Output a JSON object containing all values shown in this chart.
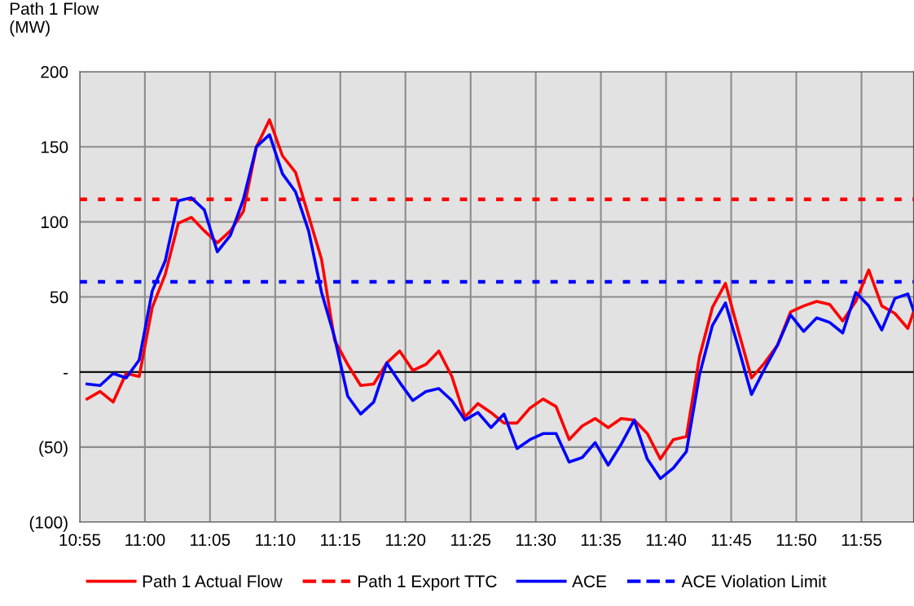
{
  "chart_data": {
    "type": "line",
    "ylabel": "Path 1 Flow\n(MW)",
    "x": [
      10.926,
      10.9427,
      10.9594,
      10.976,
      10.9927,
      11.0094,
      11.026,
      11.0427,
      11.0594,
      11.076,
      11.0927,
      11.1094,
      11.126,
      11.1427,
      11.1594,
      11.176,
      11.1927,
      11.2094,
      11.226,
      11.2427,
      11.2594,
      11.276,
      11.2927,
      11.3094,
      11.326,
      11.3427,
      11.3594,
      11.376,
      11.3927,
      11.4094,
      11.426,
      11.4427,
      11.4594,
      11.476,
      11.4927,
      11.5094,
      11.526,
      11.5427,
      11.5594,
      11.576,
      11.5927,
      11.6094,
      11.626,
      11.6427,
      11.6594,
      11.676,
      11.6927,
      11.7094,
      11.726,
      11.7427,
      11.7594,
      11.776,
      11.7927,
      11.8094,
      11.826,
      11.8427,
      11.8594,
      11.876,
      11.8927,
      11.9094,
      11.926,
      11.9427,
      11.9594,
      11.976,
      11.9833
    ],
    "series": [
      {
        "name": "Path 1 Actual Flow",
        "color": "#ff0000",
        "values": [
          -18,
          -13,
          -20,
          -1,
          -3,
          43,
          65,
          99,
          103,
          94,
          86,
          94,
          107,
          150,
          168,
          144,
          133,
          104,
          75,
          21,
          5,
          -9,
          -8,
          6,
          14,
          1,
          5,
          14,
          -3,
          -30,
          -21,
          -27,
          -34,
          -34,
          -24,
          -18,
          -23,
          -45,
          -36,
          -31,
          -37,
          -31,
          -32,
          -41,
          -58,
          -45,
          -43,
          10,
          43,
          59,
          27,
          -4,
          6,
          18,
          40,
          44,
          47,
          45,
          34,
          47,
          68,
          44,
          39,
          29,
          40
        ]
      },
      {
        "name": "ACE",
        "color": "#0000ff",
        "values": [
          -8,
          -9,
          -1,
          -4,
          8,
          54,
          74,
          114,
          116,
          108,
          80,
          91,
          115,
          150,
          158,
          132,
          120,
          94,
          53,
          23,
          -16,
          -28,
          -20,
          6,
          -7,
          -19,
          -13,
          -11,
          -19,
          -32,
          -27,
          -37,
          -28,
          -51,
          -45,
          -41,
          -41,
          -60,
          -57,
          -47,
          -62,
          -48,
          -32,
          -58,
          -71,
          -64,
          -53,
          -2,
          31,
          46,
          16,
          -15,
          2,
          18,
          38,
          27,
          36,
          33,
          26,
          53,
          44,
          28,
          49,
          52,
          41
        ]
      }
    ],
    "ref_lines": [
      {
        "axis": "y",
        "value": 115,
        "label": "Path 1 Export TTC",
        "color": "#ff0000",
        "line_style": "dotted"
      },
      {
        "axis": "y",
        "value": 60,
        "label": "ACE Violation Limit",
        "color": "#0000ff",
        "line_style": "dotted"
      },
      {
        "axis": "y",
        "value": 0,
        "color": "#000000",
        "line_style": "solid"
      }
    ],
    "xlim": [
      10.9167,
      11.9833
    ],
    "xticks": [
      {
        "value": 10.9167,
        "label": "10:55"
      },
      {
        "value": 11.0,
        "label": "11:00"
      },
      {
        "value": 11.0833,
        "label": "11:05"
      },
      {
        "value": 11.1667,
        "label": "11:10"
      },
      {
        "value": 11.25,
        "label": "11:15"
      },
      {
        "value": 11.3333,
        "label": "11:20"
      },
      {
        "value": 11.4167,
        "label": "11:25"
      },
      {
        "value": 11.5,
        "label": "11:30"
      },
      {
        "value": 11.5833,
        "label": "11:35"
      },
      {
        "value": 11.6667,
        "label": "11:40"
      },
      {
        "value": 11.75,
        "label": "11:45"
      },
      {
        "value": 11.8333,
        "label": "11:50"
      },
      {
        "value": 11.9167,
        "label": "11:55"
      }
    ],
    "ylim": [
      -100,
      200
    ],
    "yticks": [
      {
        "value": -100,
        "label": "(100)"
      },
      {
        "value": -50,
        "label": "(50)"
      },
      {
        "value": 0,
        "label": "-"
      },
      50,
      100,
      150,
      200
    ],
    "grid": true,
    "legend": "bottom",
    "marker": "none",
    "line_style": "solid"
  }
}
